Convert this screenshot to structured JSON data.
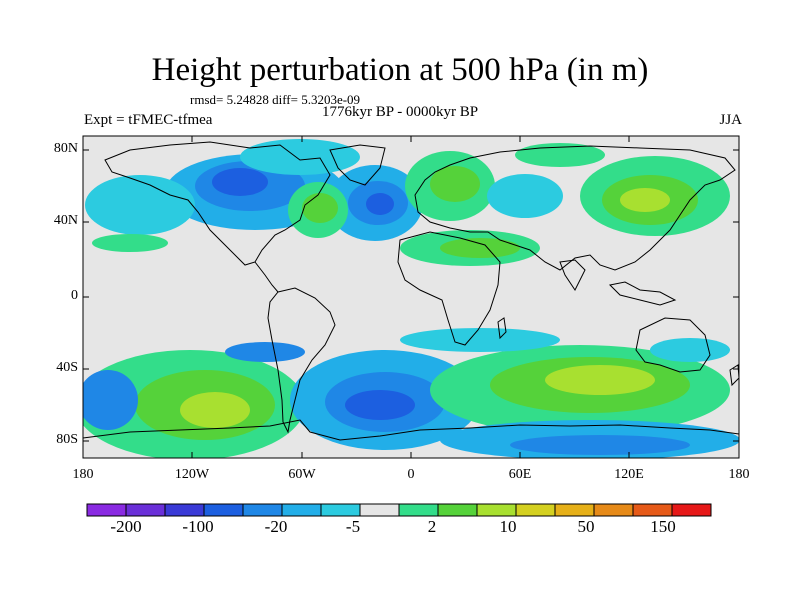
{
  "title": "Height perturbation at 500 hPa (in m)",
  "stats": "rmsd= 5.24828 diff= 5.3203e-09",
  "period": "1776kyr BP - 0000kyr BP",
  "experiment": "Expt = tFMEC-tfmea",
  "season": "JJA",
  "lat_ticks": [
    "80N",
    "40N",
    "0",
    "40S",
    "80S"
  ],
  "lon_ticks": [
    "180",
    "120W",
    "60W",
    "0",
    "60E",
    "120E",
    "180"
  ],
  "colorbar": {
    "labels": [
      "-200",
      "-100",
      "-20",
      "-5",
      "2",
      "10",
      "50",
      "150"
    ],
    "colors": [
      "#8a2be2",
      "#6a2fd8",
      "#3a3ad6",
      "#1c5fe0",
      "#1f87e6",
      "#22aee8",
      "#2ccbe0",
      "#e6e6e6",
      "#33dd8a",
      "#55d23a",
      "#a8e030",
      "#d4d020",
      "#e6b018",
      "#e68a18",
      "#e65a18",
      "#e61818"
    ]
  },
  "map": {
    "background": "#e6e6e6",
    "lon_range": [
      -180,
      180
    ],
    "lat_range": [
      -90,
      90
    ]
  }
}
